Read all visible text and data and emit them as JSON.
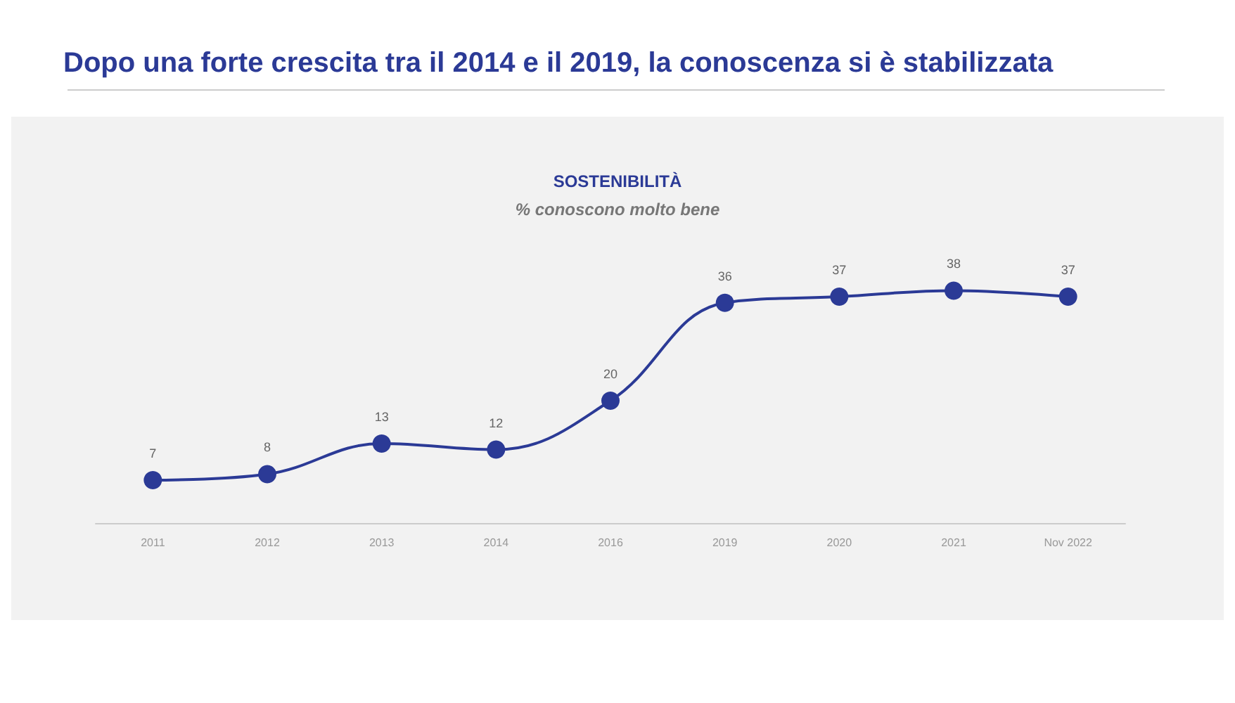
{
  "chart_data": {
    "type": "line",
    "title": "Dopo una forte crescita tra il 2014 e il 2019, la conoscenza si è stabilizzata",
    "subtitle": "SOSTENIBILITÀ",
    "ylabel": "% conoscono molto bene",
    "categories": [
      "2011",
      "2012",
      "2013",
      "2014",
      "2016",
      "2019",
      "2020",
      "2021",
      "Nov 2022"
    ],
    "series": [
      {
        "color": "#2b3a96",
        "values": [
          7,
          8,
          13,
          12,
          20,
          36,
          37,
          38,
          37
        ]
      }
    ],
    "data_labels": true,
    "marker": "circle",
    "line_style": "solid",
    "grid": false,
    "tick_labels": "x"
  }
}
